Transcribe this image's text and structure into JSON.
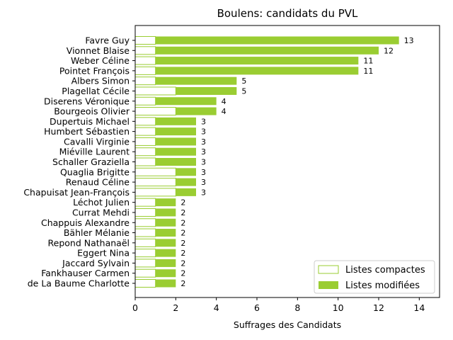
{
  "chart_data": {
    "type": "bar",
    "orientation": "horizontal",
    "stacked": true,
    "title": "Boulens: candidats du PVL",
    "xlabel": "Suffrages des Candidats",
    "ylabel": "",
    "xlim": [
      0,
      15
    ],
    "xticks": [
      0,
      2,
      4,
      6,
      8,
      10,
      12,
      14
    ],
    "grid": false,
    "legend_position": "bottom-right",
    "colors": {
      "compactes_edge": "#9acd32",
      "compactes_fill": "#ffffff",
      "modifiees": "#9acd32"
    },
    "categories": [
      "Favre Guy",
      "Vionnet Blaise",
      "Weber Céline",
      "Pointet François",
      "Albers Simon",
      "Plagellat Cécile",
      "Diserens Véronique",
      "Bourgeois Olivier",
      "Dupertuis Michael",
      "Humbert Sébastien",
      "Cavalli Virginie",
      "Miéville Laurent",
      "Schaller Graziella",
      "Quaglia Brigitte",
      "Renaud Céline",
      "Chapuisat Jean-François",
      "Léchot Julien",
      "Currat Mehdi",
      "Chappuis Alexandre",
      "Bähler Mélanie",
      "Repond Nathanaël",
      "Eggert Nina",
      "Jaccard Sylvain",
      "Fankhauser Carmen",
      "de La Baume Charlotte"
    ],
    "series": [
      {
        "name": "Listes compactes",
        "values": [
          1,
          1,
          1,
          1,
          1,
          2,
          1,
          2,
          1,
          1,
          1,
          1,
          1,
          2,
          2,
          2,
          1,
          1,
          1,
          1,
          1,
          1,
          1,
          1,
          1
        ]
      },
      {
        "name": "Listes modifiées",
        "values": [
          12,
          11,
          10,
          10,
          4,
          3,
          3,
          2,
          2,
          2,
          2,
          2,
          2,
          1,
          1,
          1,
          1,
          1,
          1,
          1,
          1,
          1,
          1,
          1,
          1
        ]
      }
    ],
    "totals": [
      13,
      12,
      11,
      11,
      5,
      5,
      4,
      4,
      3,
      3,
      3,
      3,
      3,
      3,
      3,
      3,
      2,
      2,
      2,
      2,
      2,
      2,
      2,
      2,
      2
    ]
  }
}
